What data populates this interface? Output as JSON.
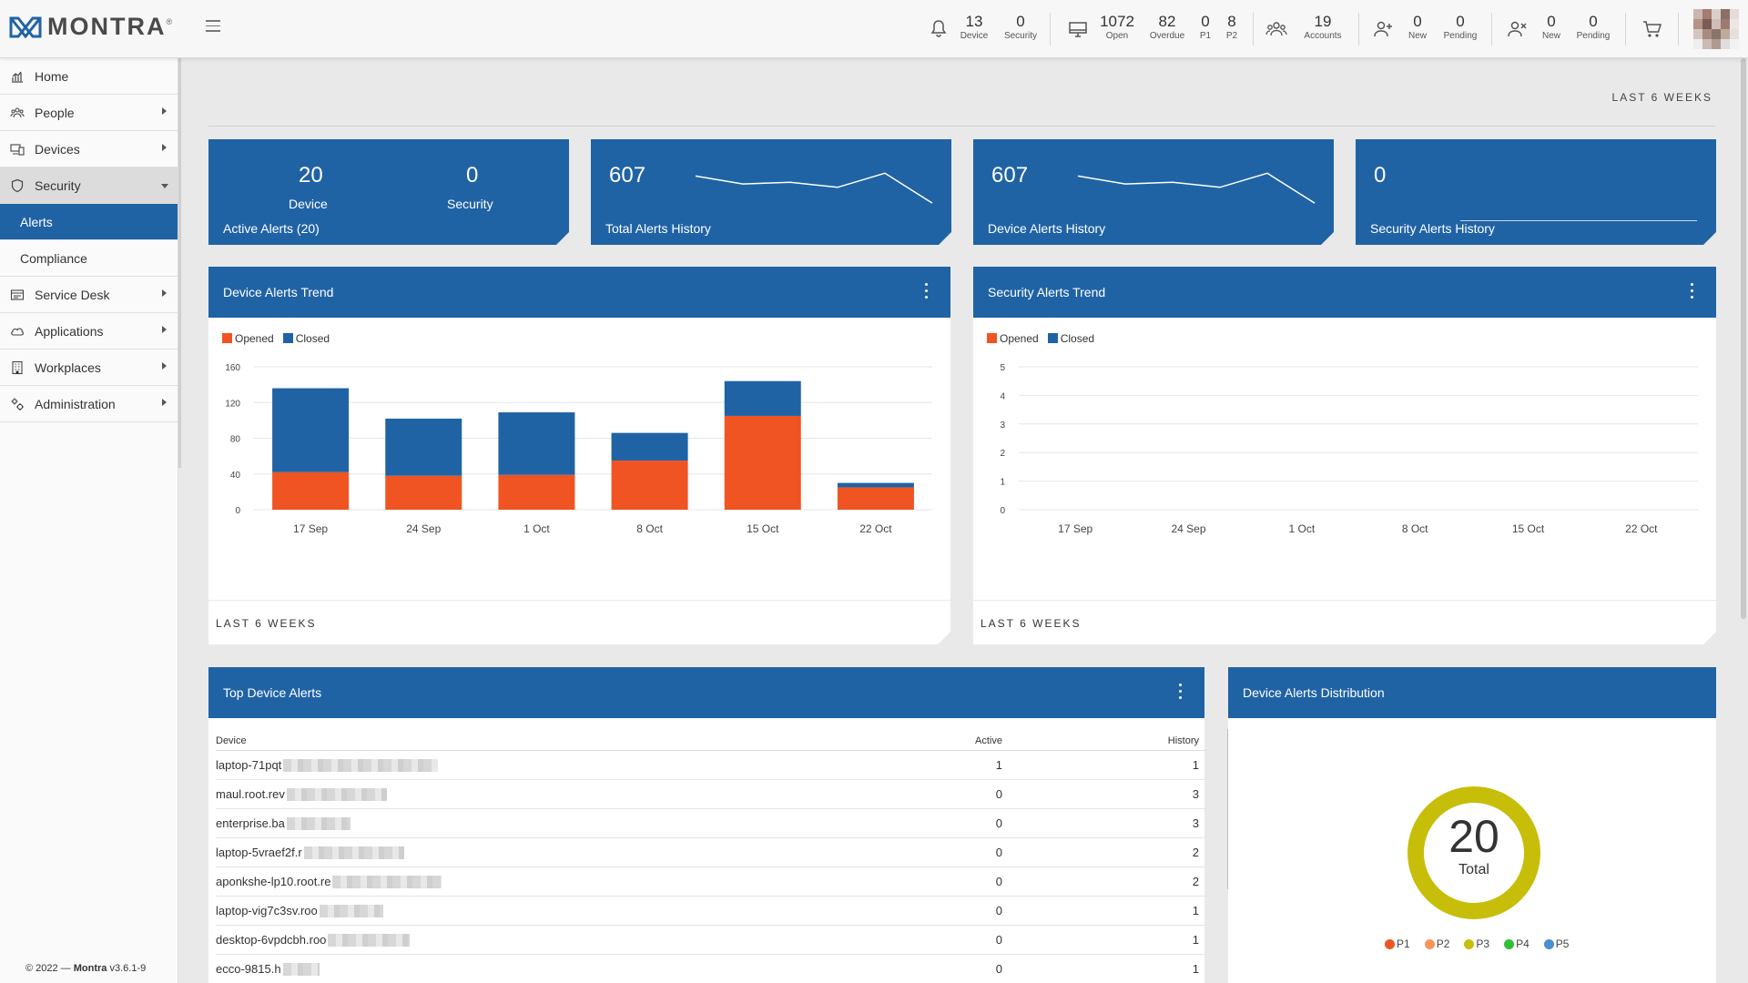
{
  "app": {
    "logo_text": "MONTRA",
    "logo_tm": "®"
  },
  "topbar": {
    "alerts": [
      {
        "value": "13",
        "label": "Device"
      },
      {
        "value": "0",
        "label": "Security"
      }
    ],
    "tickets": [
      {
        "value": "1072",
        "label": "Open"
      },
      {
        "value": "82",
        "label": "Overdue"
      },
      {
        "value": "0",
        "label": "P1"
      },
      {
        "value": "8",
        "label": "P2"
      }
    ],
    "accounts": [
      {
        "value": "19",
        "label": "Accounts"
      }
    ],
    "onboarding": [
      {
        "value": "0",
        "label": "New"
      },
      {
        "value": "0",
        "label": "Pending"
      }
    ],
    "offboarding": [
      {
        "value": "0",
        "label": "New"
      },
      {
        "value": "0",
        "label": "Pending"
      }
    ]
  },
  "sidebar": {
    "items": [
      {
        "label": "Home",
        "icon": "home-chart-icon"
      },
      {
        "label": "People",
        "icon": "people-icon"
      },
      {
        "label": "Devices",
        "icon": "devices-icon"
      },
      {
        "label": "Security",
        "icon": "shield-icon"
      },
      {
        "label": "Alerts"
      },
      {
        "label": "Compliance"
      },
      {
        "label": "Service Desk",
        "icon": "service-desk-icon"
      },
      {
        "label": "Applications",
        "icon": "cloud-icon"
      },
      {
        "label": "Workplaces",
        "icon": "building-icon"
      },
      {
        "label": "Administration",
        "icon": "admin-gears-icon"
      }
    ],
    "footer_copy": "© 2022 —",
    "footer_brand": "Montra",
    "footer_version": "v3.6.1-9"
  },
  "main": {
    "period": "LAST 6 WEEKS",
    "kpi": {
      "active_device_value": "20",
      "active_device_label": "Device",
      "active_security_value": "0",
      "active_security_label": "Security",
      "active_caption": "Active Alerts (20)",
      "total_history_value": "607",
      "total_history_caption": "Total Alerts History",
      "device_history_value": "607",
      "device_history_caption": "Device Alerts History",
      "security_history_value": "0",
      "security_history_caption": "Security Alerts History"
    },
    "device_trend": {
      "title": "Device Alerts Trend",
      "legend_opened": "Opened",
      "legend_closed": "Closed",
      "footer": "LAST 6 WEEKS"
    },
    "security_trend": {
      "title": "Security Alerts Trend",
      "legend_opened": "Opened",
      "legend_closed": "Closed",
      "footer": "LAST 6 WEEKS"
    },
    "top_alerts": {
      "title": "Top Device Alerts",
      "col_device": "Device",
      "col_active": "Active",
      "col_history": "History",
      "rows": [
        {
          "device": "laptop-71pqt",
          "active": "1",
          "history": "1"
        },
        {
          "device": "maul.root.rev",
          "active": "0",
          "history": "3"
        },
        {
          "device": "enterprise.ba",
          "active": "0",
          "history": "3"
        },
        {
          "device": "laptop-5vraef2f.r",
          "active": "0",
          "history": "2"
        },
        {
          "device": "aponkshe-lp10.root.re",
          "active": "0",
          "history": "2"
        },
        {
          "device": "laptop-vig7c3sv.roo",
          "active": "0",
          "history": "1"
        },
        {
          "device": "desktop-6vpdcbh.roo",
          "active": "0",
          "history": "1"
        },
        {
          "device": "ecco-9815.h",
          "active": "0",
          "history": "1"
        }
      ]
    },
    "distribution": {
      "title": "Device Alerts Distribution",
      "total_value": "20",
      "total_label": "Total",
      "legend": [
        {
          "label": "P1",
          "color": "#f05423"
        },
        {
          "label": "P2",
          "color": "#f7945a"
        },
        {
          "label": "P3",
          "color": "#c7be0a"
        },
        {
          "label": "P4",
          "color": "#2fbf3a"
        },
        {
          "label": "P5",
          "color": "#4a8fd0"
        }
      ]
    }
  },
  "colors": {
    "brand": "#2063a5",
    "opened": "#f05423",
    "closed": "#2063a5",
    "donut": "#c7be0a"
  },
  "chart_data": [
    {
      "type": "bar",
      "title": "Device Alerts Trend",
      "categories": [
        "17 Sep",
        "24 Sep",
        "1 Oct",
        "8 Oct",
        "15 Oct",
        "22 Oct"
      ],
      "stacked": true,
      "series": [
        {
          "name": "Opened",
          "values": [
            42,
            38,
            39,
            55,
            105,
            25
          ]
        },
        {
          "name": "Closed",
          "values": [
            94,
            64,
            70,
            31,
            39,
            5
          ]
        }
      ],
      "yticks": [
        0,
        40,
        80,
        120,
        160
      ],
      "ylim": [
        0,
        160
      ]
    },
    {
      "type": "bar",
      "title": "Security Alerts Trend",
      "categories": [
        "17 Sep",
        "24 Sep",
        "1 Oct",
        "8 Oct",
        "15 Oct",
        "22 Oct"
      ],
      "stacked": true,
      "series": [
        {
          "name": "Opened",
          "values": [
            0,
            0,
            0,
            0,
            0,
            0
          ]
        },
        {
          "name": "Closed",
          "values": [
            0,
            0,
            0,
            0,
            0,
            0
          ]
        }
      ],
      "yticks": [
        0,
        1,
        2,
        3,
        4,
        5
      ],
      "ylim": [
        0,
        5
      ]
    },
    {
      "type": "line",
      "title": "Total Alerts History",
      "values": [
        80,
        66,
        69,
        60,
        85,
        32
      ]
    },
    {
      "type": "line",
      "title": "Device Alerts History",
      "values": [
        80,
        66,
        69,
        60,
        85,
        32
      ]
    },
    {
      "type": "line",
      "title": "Security Alerts History",
      "values": [
        0,
        0,
        0,
        0,
        0,
        0
      ]
    },
    {
      "type": "pie",
      "title": "Device Alerts Distribution",
      "categories": [
        "P1",
        "P2",
        "P3",
        "P4",
        "P5"
      ],
      "values": [
        0,
        0,
        20,
        0,
        0
      ]
    }
  ]
}
